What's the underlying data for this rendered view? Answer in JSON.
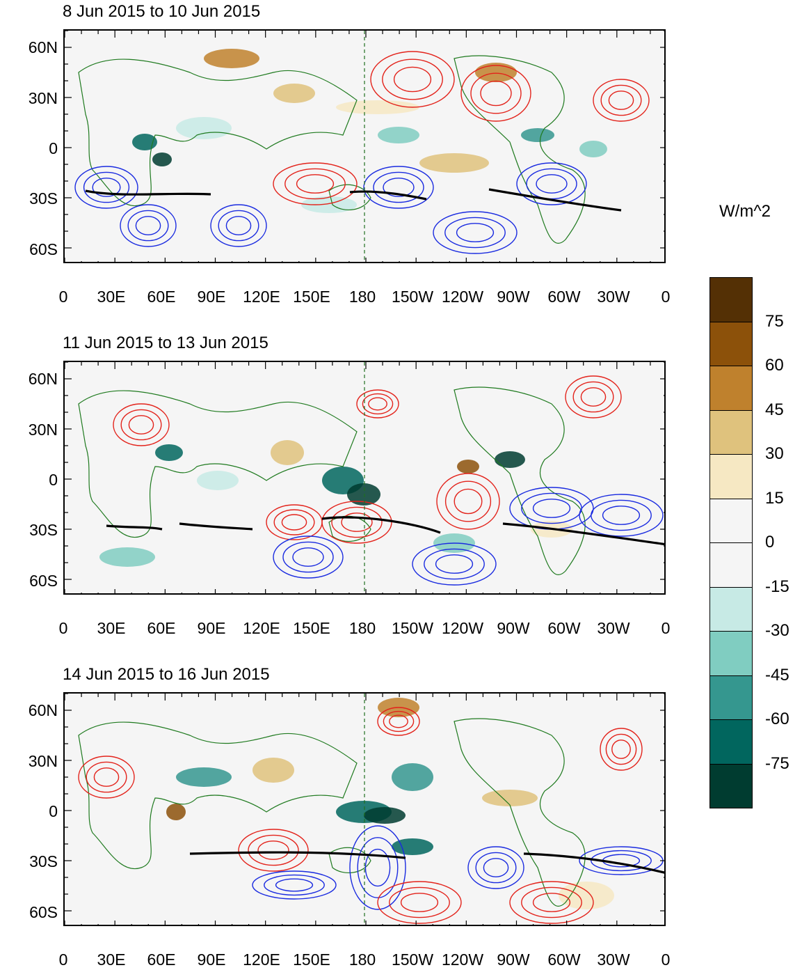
{
  "units": "W/m^2",
  "colorbar": {
    "bins": [
      {
        "color": "#543005"
      },
      {
        "color": "#8c510a"
      },
      {
        "color": "#bf812d"
      },
      {
        "color": "#dfc27d"
      },
      {
        "color": "#f6e8c3"
      },
      {
        "color": "#f5f5f5"
      },
      {
        "color": "#f5f5f5"
      },
      {
        "color": "#c7eae5"
      },
      {
        "color": "#80cdc1"
      },
      {
        "color": "#35978f"
      },
      {
        "color": "#01665e"
      },
      {
        "color": "#003c30"
      }
    ],
    "labels": [
      "75",
      "60",
      "45",
      "30",
      "15",
      "0",
      "-15",
      "-30",
      "-45",
      "-60",
      "-75"
    ]
  },
  "lat_labels": [
    "60N",
    "30N",
    "0",
    "30S",
    "60S"
  ],
  "lon_labels": [
    "0",
    "30E",
    "60E",
    "90E",
    "120E",
    "150E",
    "180",
    "150W",
    "120W",
    "90W",
    "60W",
    "30W",
    "0"
  ],
  "panels": [
    {
      "title": "8 Jun 2015 to 10 Jun 2015"
    },
    {
      "title": "11 Jun 2015 to 13 Jun 2015"
    },
    {
      "title": "14 Jun 2015 to 16 Jun 2015"
    }
  ],
  "colors": {
    "positive_contour": "#e3231b",
    "negative_contour": "#1a2be0",
    "zero_line": "#000000",
    "coastline": "#1f7a1f"
  }
}
